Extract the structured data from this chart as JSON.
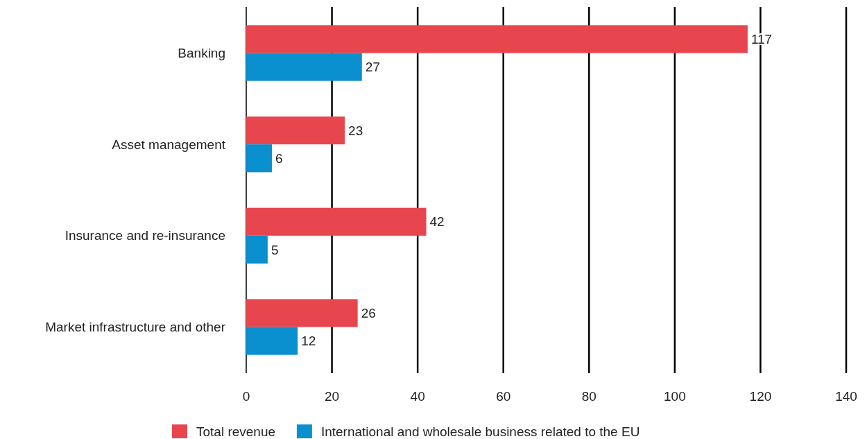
{
  "chart_data": {
    "type": "bar",
    "orientation": "horizontal",
    "categories": [
      "Banking",
      "Asset management",
      "Insurance and re-insurance",
      "Market infrastructure and other"
    ],
    "series": [
      {
        "name": "Total revenue",
        "color": "#e8464e",
        "values": [
          117,
          23,
          42,
          26
        ]
      },
      {
        "name": "International and wholesale business related to the EU",
        "color": "#0a8fcf",
        "values": [
          27,
          6,
          5,
          12
        ]
      }
    ],
    "xlim": [
      0,
      140
    ],
    "xticks": [
      0,
      20,
      40,
      60,
      80,
      100,
      120,
      140
    ],
    "grid": "x",
    "legend": "bottom",
    "data_labels": true
  }
}
